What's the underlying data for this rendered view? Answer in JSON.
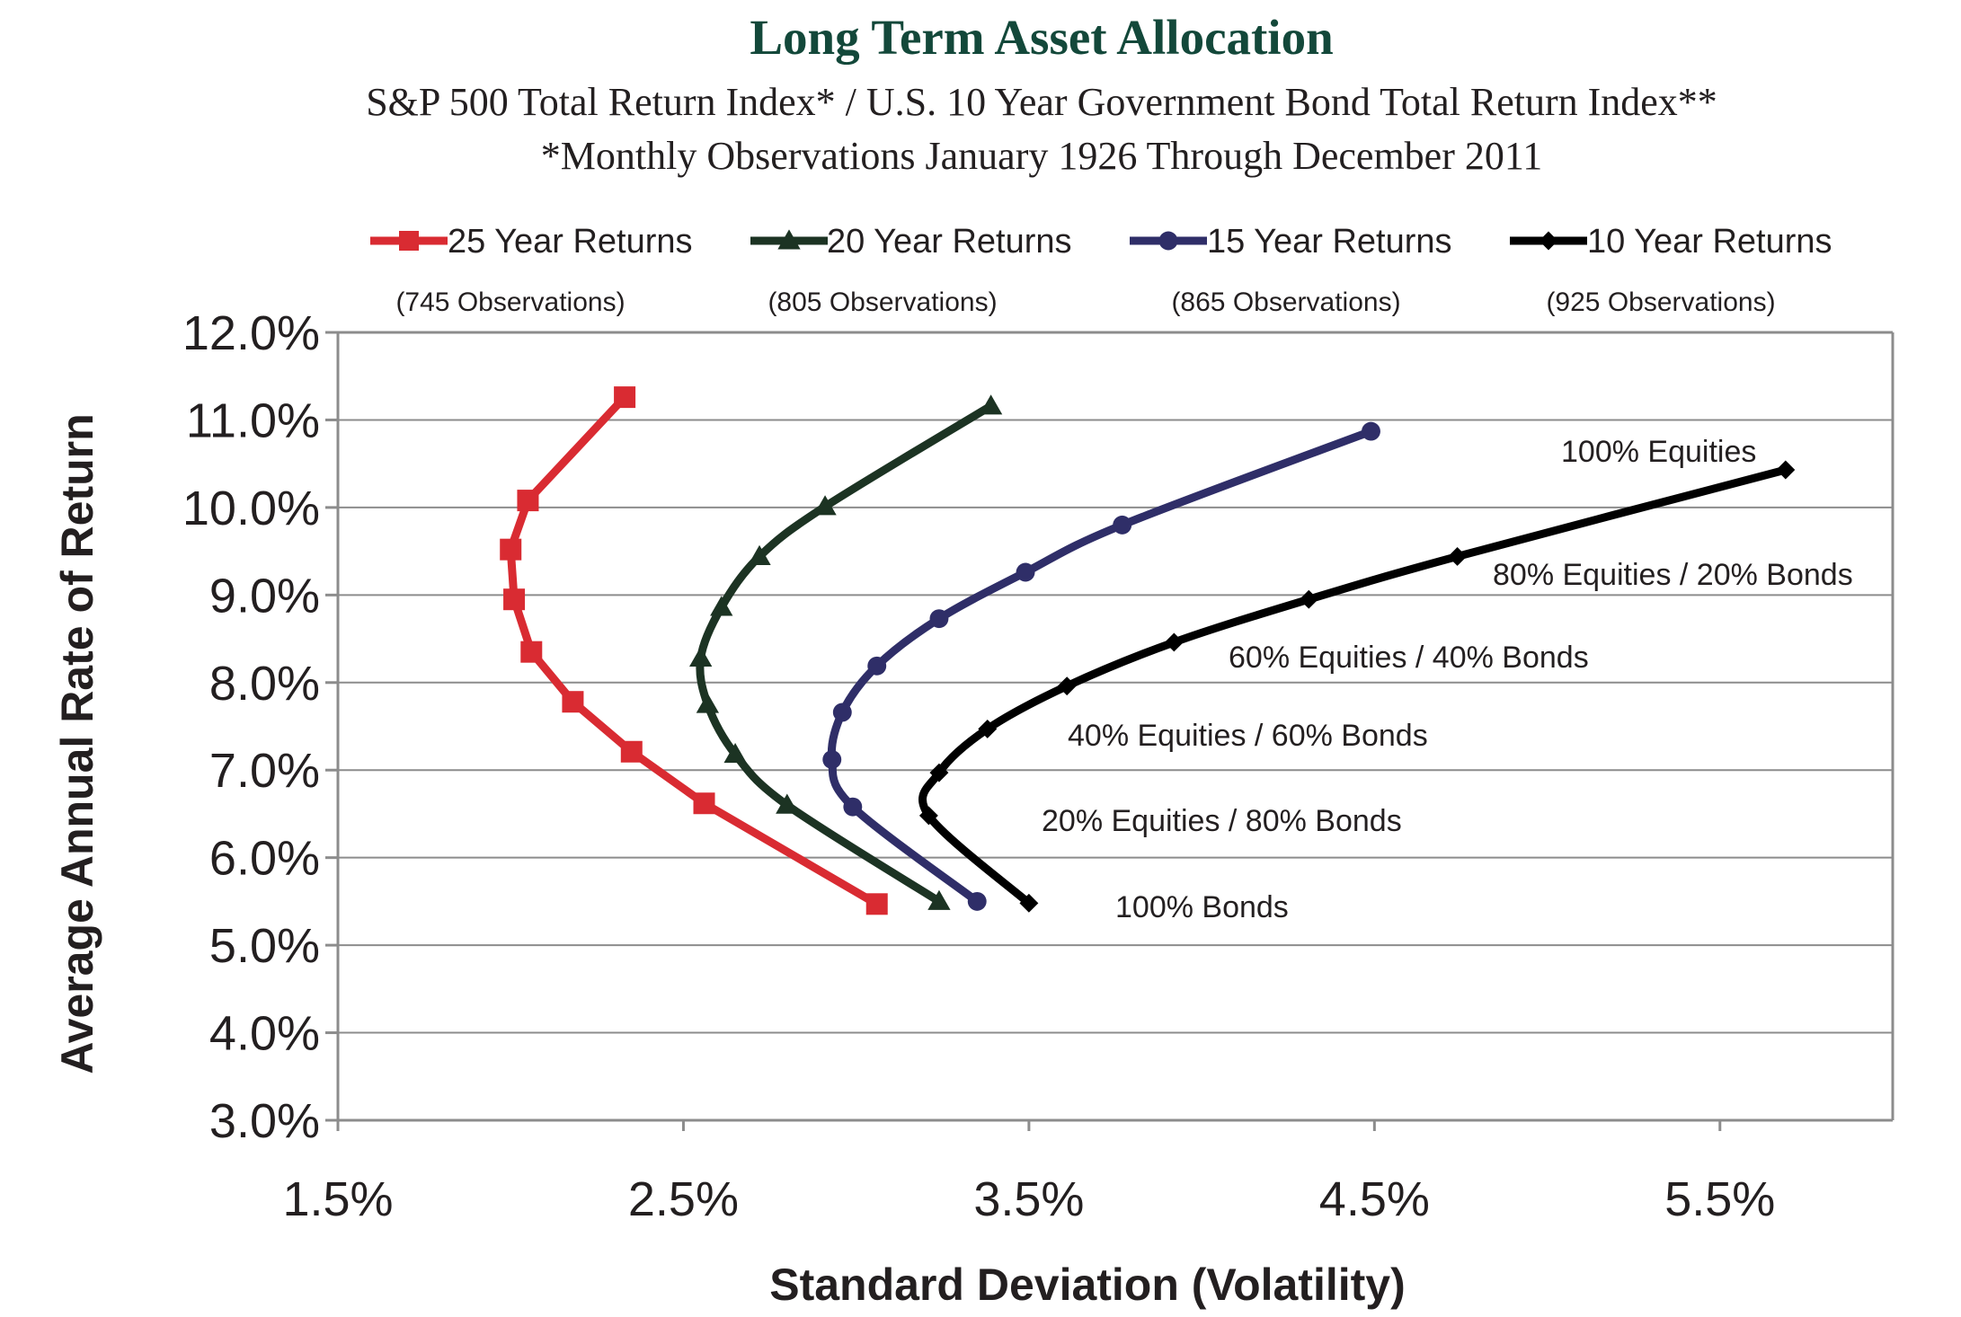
{
  "chart_data": {
    "type": "line",
    "title": "Long Term Asset Allocation",
    "subtitle": [
      "S&P 500 Total Return Index* / U.S. 10 Year Government Bond Total Return Index**",
      "*Monthly Observations January 1926 Through December 2011"
    ],
    "xlabel": "Standard Deviation (Volatility)",
    "ylabel": "Average Annual Rate of  Return",
    "xlim": [
      1.5,
      6.0
    ],
    "ylim": [
      3.0,
      12.0
    ],
    "x_ticks": [
      1.5,
      2.5,
      3.5,
      4.5,
      5.5
    ],
    "x_tick_labels": [
      "1.5%",
      "2.5%",
      "3.5%",
      "4.5%",
      "5.5%"
    ],
    "y_ticks": [
      3,
      4,
      5,
      6,
      7,
      8,
      9,
      10,
      11,
      12
    ],
    "y_tick_labels": [
      "3.0%",
      "4.0%",
      "5.0%",
      "6.0%",
      "7.0%",
      "8.0%",
      "9.0%",
      "10.0%",
      "11.0%",
      "12.0%"
    ],
    "grid": "horizontal",
    "legend_position": "top",
    "series": [
      {
        "name": "25 Year Returns",
        "observations": "(745 Observations)",
        "color": "#d92b32",
        "marker": "square",
        "x": [
          3.06,
          2.56,
          2.35,
          2.18,
          2.06,
          2.01,
          2.0,
          2.05,
          2.33
        ],
        "y": [
          5.47,
          6.62,
          7.21,
          7.78,
          8.35,
          8.95,
          9.52,
          10.08,
          11.26
        ]
      },
      {
        "name": "20 Year Returns",
        "observations": "(805 Observations)",
        "color": "#1c3323",
        "marker": "triangle",
        "x": [
          3.24,
          2.8,
          2.65,
          2.57,
          2.55,
          2.61,
          2.72,
          2.91,
          3.39
        ],
        "y": [
          5.5,
          6.6,
          7.18,
          7.75,
          8.28,
          8.86,
          9.44,
          10.01,
          11.16
        ]
      },
      {
        "name": "15 Year Returns",
        "observations": "(865 Observations)",
        "color": "#2f2e68",
        "marker": "circle",
        "x": [
          3.35,
          2.99,
          2.93,
          2.96,
          3.06,
          3.24,
          3.49,
          3.77,
          4.49
        ],
        "y": [
          5.5,
          6.58,
          7.12,
          7.66,
          8.19,
          8.73,
          9.26,
          9.8,
          10.87
        ]
      },
      {
        "name": "10 Year Returns",
        "observations": "(925 Observations)",
        "color": "#000000",
        "marker": "diamond",
        "x": [
          3.5,
          3.21,
          3.24,
          3.38,
          3.61,
          3.92,
          4.31,
          4.74,
          5.69
        ],
        "y": [
          5.48,
          6.48,
          6.97,
          7.47,
          7.96,
          8.46,
          8.95,
          9.44,
          10.43
        ]
      }
    ],
    "annotations": [
      "100% Equities",
      "80% Equities / 20% Bonds",
      "60% Equities / 40% Bonds",
      "40% Equities / 60% Bonds",
      "20% Equities / 80% Bonds",
      "100% Bonds"
    ]
  },
  "colors": {
    "title": "#13483a",
    "axis": "#8c8c8c",
    "grid": "#8c8c8c",
    "text": "#231f20"
  }
}
